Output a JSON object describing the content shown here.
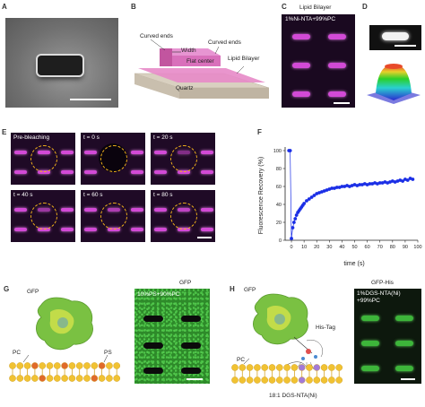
{
  "panels": {
    "A": {
      "label": "A"
    },
    "B": {
      "label": "B",
      "annotations": {
        "curved_left": "Curved ends",
        "width": "Width",
        "curved_right": "Curved ends",
        "flat_center": "Flat center",
        "lipid_bilayer": "Lipid Bilayer",
        "substrate": "Quartz"
      }
    },
    "C": {
      "label": "C",
      "title": "Lipid Bilayer",
      "composition": "1%Ni-NTA+99%PC"
    },
    "D": {
      "label": "D"
    },
    "E": {
      "label": "E",
      "frames": [
        "Pre-bleaching",
        "t = 0 s",
        "t = 20 s",
        "t = 40 s",
        "t = 60 s",
        "t = 80 s"
      ]
    },
    "F": {
      "label": "F"
    },
    "G": {
      "label": "G",
      "protein": "GFP",
      "lipid_pc": "PC",
      "lipid_ps": "PS",
      "image_title": "GFP",
      "composition": "10%PS+90%PC"
    },
    "H": {
      "label": "H",
      "protein": "GFP",
      "his_tag": "His-Tag",
      "lipid_pc": "PC",
      "nta_lipid": "18:1 DGS-NTA(Ni)",
      "image_title": "GFP-His",
      "composition_line1": "1%DGS-NTA(Ni)",
      "composition_line2": "+99%PC"
    }
  },
  "colors": {
    "magenta": "#d24ad6",
    "green": "#3db53a",
    "bleach_circle": "#f1b21a",
    "data_blue": "#1a2ee6"
  },
  "chart_data": {
    "type": "scatter",
    "xlabel": "time (s)",
    "ylabel": "Fluorescence Recovery (%)",
    "xlim": [
      -5,
      100
    ],
    "ylim": [
      0,
      100
    ],
    "xticks": [
      0,
      10,
      20,
      30,
      40,
      50,
      60,
      70,
      80,
      90,
      100
    ],
    "yticks": [
      0,
      20,
      40,
      60,
      80,
      100
    ],
    "series": [
      {
        "x": [
          -2,
          -1,
          0,
          1,
          2,
          3,
          4,
          5,
          6,
          7,
          8,
          9,
          10,
          12,
          14,
          16,
          18,
          20,
          22,
          24,
          26,
          28,
          30,
          32,
          34,
          36,
          38,
          40,
          42,
          44,
          46,
          48,
          50,
          52,
          54,
          56,
          58,
          60,
          62,
          64,
          66,
          68,
          70,
          72,
          74,
          76,
          78,
          80,
          82,
          84,
          86,
          88,
          90,
          92,
          94,
          96
        ],
        "y": [
          100,
          100,
          2,
          14,
          20,
          24,
          28,
          31,
          33,
          35,
          37,
          39,
          41,
          44,
          46,
          48,
          50,
          52,
          53,
          54,
          55,
          56,
          57,
          58,
          58,
          59,
          59,
          60,
          60,
          61,
          60,
          61,
          62,
          61,
          62,
          62,
          63,
          62,
          63,
          63,
          64,
          63,
          64,
          64,
          65,
          64,
          65,
          66,
          65,
          66,
          67,
          66,
          68,
          67,
          69,
          68
        ]
      }
    ]
  }
}
